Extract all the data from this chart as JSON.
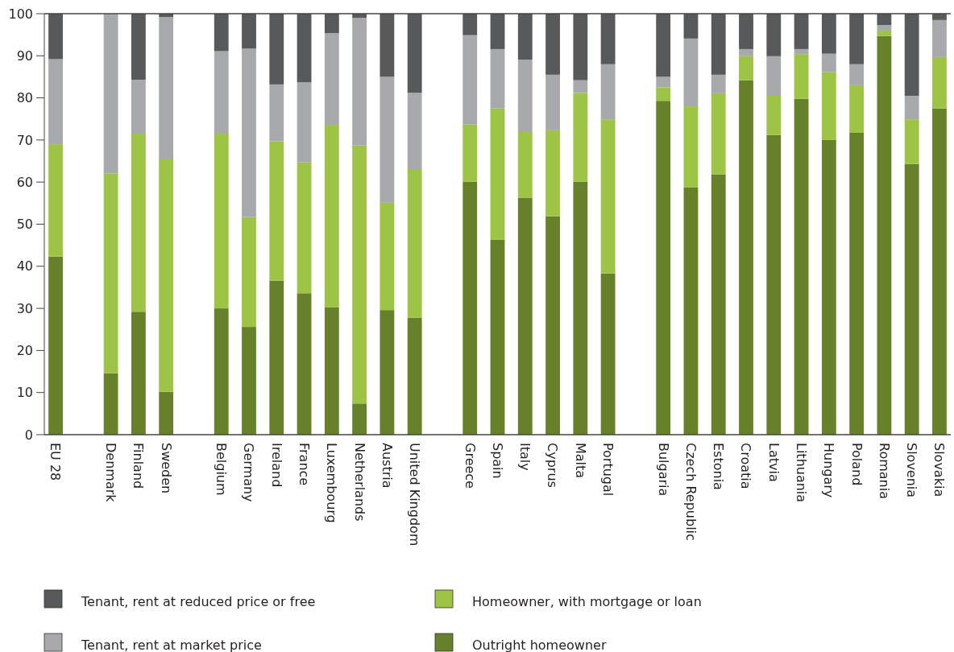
{
  "chart_data": {
    "type": "bar",
    "stacked": true,
    "categories": [
      "EU 28",
      null,
      "Denmark",
      "Finland",
      "Sweden",
      null,
      "Belgium",
      "Germany",
      "Ireland",
      "France",
      "Luxembourg",
      "Netherlands",
      "Austria",
      "United Kingdom",
      null,
      "Greece",
      "Spain",
      "Italy",
      "Cyprus",
      "Malta",
      "Portugal",
      null,
      "Bulgaria",
      "Czech Republic",
      "Estonia",
      "Croatia",
      "Latvia",
      "Lithuania",
      "Hungary",
      "Poland",
      "Romania",
      "Slovenia",
      "Slovakia"
    ],
    "series": [
      {
        "name": "Outright homeowner",
        "color": "#67812a",
        "values": [
          42.3,
          null,
          14.6,
          29.2,
          10.2,
          null,
          30.0,
          25.6,
          36.6,
          33.6,
          30.3,
          7.4,
          29.6,
          27.8,
          null,
          60.1,
          46.3,
          56.3,
          51.9,
          60.1,
          38.3,
          null,
          79.3,
          58.8,
          61.8,
          84.2,
          71.2,
          79.8,
          70.0,
          71.7,
          94.7,
          64.3,
          77.5
        ]
      },
      {
        "name": "Homeowner, with mortgage or loan",
        "color": "#9dc444",
        "values": [
          26.7,
          null,
          47.4,
          42.3,
          55.2,
          null,
          41.5,
          26.1,
          33.1,
          31.1,
          43.3,
          61.3,
          25.5,
          35.3,
          null,
          13.6,
          31.2,
          15.6,
          20.4,
          21.1,
          36.5,
          null,
          3.2,
          19.2,
          19.3,
          5.7,
          9.3,
          10.6,
          16.1,
          11.3,
          1.3,
          10.5,
          12.2
        ]
      },
      {
        "name": "Tenant, rent at market price",
        "color": "#a7a9ac",
        "values": [
          20.2,
          null,
          38.0,
          12.8,
          33.8,
          null,
          19.6,
          40.0,
          13.5,
          19.0,
          21.8,
          30.3,
          29.9,
          18.1,
          null,
          21.2,
          14.1,
          17.2,
          13.2,
          3.0,
          13.2,
          null,
          2.5,
          16.1,
          4.4,
          1.7,
          9.4,
          1.2,
          4.4,
          5.0,
          1.3,
          5.7,
          8.8
        ]
      },
      {
        "name": "Tenant, rent at reduced price or free",
        "color": "#58595b",
        "values": [
          10.8,
          null,
          null,
          15.7,
          0.8,
          null,
          8.9,
          8.3,
          16.8,
          16.3,
          4.6,
          1.0,
          15.0,
          18.8,
          null,
          5.1,
          8.4,
          10.9,
          14.5,
          15.8,
          12.0,
          null,
          15.0,
          5.9,
          14.5,
          8.4,
          10.1,
          8.4,
          9.5,
          12.0,
          2.7,
          19.5,
          1.5
        ]
      }
    ],
    "ylim": [
      0,
      100
    ],
    "yticks": [
      0,
      10,
      20,
      30,
      40,
      50,
      60,
      70,
      80,
      90,
      100
    ],
    "grid": false,
    "legend": "bottom"
  }
}
